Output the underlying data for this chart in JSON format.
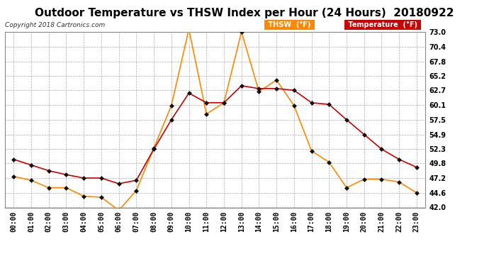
{
  "title": "Outdoor Temperature vs THSW Index per Hour (24 Hours)  20180922",
  "copyright": "Copyright 2018 Cartronics.com",
  "hours": [
    "00:00",
    "01:00",
    "02:00",
    "03:00",
    "04:00",
    "05:00",
    "06:00",
    "07:00",
    "08:00",
    "09:00",
    "10:00",
    "11:00",
    "12:00",
    "13:00",
    "14:00",
    "15:00",
    "16:00",
    "17:00",
    "18:00",
    "19:00",
    "20:00",
    "21:00",
    "22:00",
    "23:00"
  ],
  "temperature": [
    50.5,
    49.5,
    48.5,
    47.8,
    47.2,
    47.2,
    46.2,
    46.8,
    52.3,
    57.5,
    62.2,
    60.5,
    60.5,
    63.5,
    63.0,
    63.0,
    62.7,
    60.5,
    60.2,
    57.5,
    54.9,
    52.3,
    50.5,
    49.1
  ],
  "thsw": [
    47.5,
    46.8,
    45.5,
    45.5,
    44.0,
    43.8,
    41.5,
    45.0,
    52.5,
    60.0,
    73.5,
    58.5,
    60.5,
    73.0,
    62.5,
    64.5,
    60.0,
    52.0,
    50.0,
    45.5,
    47.0,
    47.0,
    46.5,
    44.6
  ],
  "ylim": [
    42.0,
    73.0
  ],
  "yticks": [
    42.0,
    44.6,
    47.2,
    49.8,
    52.3,
    54.9,
    57.5,
    60.1,
    62.7,
    65.2,
    67.8,
    70.4,
    73.0
  ],
  "temp_color": "#cc0000",
  "thsw_color": "#ff8800",
  "background_color": "#ffffff",
  "grid_color": "#aaaaaa",
  "legend_thsw_bg": "#ff8800",
  "legend_temp_bg": "#cc0000",
  "title_fontsize": 11,
  "axis_fontsize": 7,
  "marker": "D",
  "marker_color": "#111111",
  "marker_size": 3
}
